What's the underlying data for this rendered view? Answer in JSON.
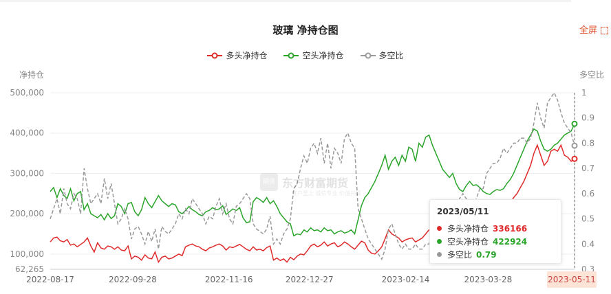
{
  "header": {
    "title": "玻璃 净持仓图",
    "fullscreen_label": "全屏"
  },
  "watermark": {
    "name": "东方财富期货",
    "slogan": "客户至上 诚信专业 价值共赢",
    "logo": "期货"
  },
  "legend": {
    "items": [
      {
        "label": "多头净持仓",
        "color": "#e02a2a"
      },
      {
        "label": "空头净持仓",
        "color": "#2aa52a"
      },
      {
        "label": "多空比",
        "color": "#999999"
      }
    ]
  },
  "axis_names": {
    "left": "净持仓",
    "right": "多空比"
  },
  "tooltip": {
    "date": "2023/05/11",
    "rows": [
      {
        "label": "多头净持仓",
        "value": "336166",
        "color": "#e02a2a"
      },
      {
        "label": "空头净持仓",
        "value": "422924",
        "color": "#2aa52a"
      },
      {
        "label": "多空比",
        "value": "0.79",
        "color": "#999999"
      }
    ]
  },
  "end_label": "2023-05-11",
  "chart_data": {
    "type": "line",
    "title": "玻璃 净持仓图",
    "xlabel": "",
    "ylabel": "净持仓",
    "y2label": "多空比",
    "x_tick_labels": [
      "2022-08-17",
      "2022-09-28",
      "2022-11-16",
      "2022-12-27",
      "2023-02-14",
      "2023-03-28",
      "2023-05-11"
    ],
    "y_tick_labels": [
      "500,000",
      "400,000",
      "300,000",
      "200,000",
      "100,000",
      "62,265"
    ],
    "y2_tick_labels": [
      "1",
      "0.9",
      "0.8",
      "0.7",
      "0.6",
      "0.5",
      "0.4",
      "0.3"
    ],
    "ylim": [
      62265,
      500000
    ],
    "y2lim": [
      0.3,
      1.0
    ],
    "x_range": [
      "2022-08-17",
      "2023-05-11"
    ],
    "legend_position": "top",
    "grid": true,
    "series": [
      {
        "name": "多头净持仓",
        "axis": "left",
        "color": "#e02a2a",
        "dashed": false,
        "values": [
          130000,
          140000,
          142000,
          133000,
          130000,
          136000,
          122000,
          125000,
          118000,
          124000,
          130000,
          140000,
          120000,
          105000,
          128000,
          115000,
          112000,
          120000,
          118000,
          112000,
          118000,
          110000,
          108000,
          120000,
          88000,
          95000,
          92000,
          85000,
          98000,
          90000,
          88000,
          105000,
          80000,
          92000,
          95000,
          88000,
          90000,
          95000,
          100000,
          96000,
          118000,
          122000,
          125000,
          120000,
          118000,
          112000,
          108000,
          115000,
          118000,
          122000,
          125000,
          120000,
          110000,
          118000,
          116000,
          120000,
          124000,
          118000,
          112000,
          108000,
          118000,
          110000,
          112000,
          108000,
          116000,
          120000,
          85000,
          90000,
          84000,
          88000,
          80000,
          92000,
          86000,
          95000,
          100000,
          98000,
          108000,
          120000,
          125000,
          118000,
          122000,
          130000,
          120000,
          125000,
          128000,
          118000,
          122000,
          130000,
          125000,
          118000,
          112000,
          122000,
          132000,
          128000,
          110000,
          102000,
          100000,
          108000,
          118000,
          138000,
          160000,
          150000,
          145000,
          140000,
          130000,
          135000,
          138000,
          140000,
          130000,
          135000,
          140000,
          150000,
          160000,
          165000,
          170000,
          158000,
          165000,
          160000,
          150000,
          145000,
          150000,
          155000,
          160000,
          150000,
          145000,
          148000,
          158000,
          165000,
          160000,
          175000,
          180000,
          185000,
          190000,
          200000,
          210000,
          215000,
          225000,
          240000,
          250000,
          265000,
          280000,
          300000,
          320000,
          350000,
          370000,
          345000,
          320000,
          330000,
          355000,
          360000,
          355000,
          370000,
          345000,
          340000,
          330000,
          336166
        ]
      },
      {
        "name": "空头净持仓",
        "axis": "left",
        "color": "#2aa52a",
        "dashed": false,
        "values": [
          255000,
          265000,
          240000,
          262000,
          245000,
          238000,
          262000,
          232000,
          250000,
          255000,
          210000,
          225000,
          200000,
          195000,
          190000,
          198000,
          185000,
          200000,
          188000,
          195000,
          225000,
          218000,
          200000,
          225000,
          228000,
          205000,
          195000,
          210000,
          240000,
          225000,
          215000,
          230000,
          245000,
          232000,
          225000,
          218000,
          225000,
          222000,
          205000,
          200000,
          208000,
          218000,
          210000,
          205000,
          198000,
          195000,
          205000,
          208000,
          215000,
          210000,
          212000,
          220000,
          198000,
          205000,
          212000,
          208000,
          215000,
          190000,
          178000,
          180000,
          230000,
          240000,
          235000,
          228000,
          240000,
          225000,
          232000,
          218000,
          200000,
          190000,
          180000,
          175000,
          145000,
          150000,
          148000,
          160000,
          155000,
          165000,
          158000,
          160000,
          155000,
          165000,
          158000,
          160000,
          150000,
          155000,
          158000,
          152000,
          155000,
          160000,
          150000,
          185000,
          220000,
          240000,
          250000,
          265000,
          280000,
          300000,
          320000,
          345000,
          310000,
          330000,
          340000,
          320000,
          345000,
          330000,
          365000,
          360000,
          330000,
          375000,
          365000,
          390000,
          395000,
          370000,
          350000,
          330000,
          310000,
          300000,
          290000,
          300000,
          275000,
          260000,
          255000,
          270000,
          280000,
          270000,
          272000,
          265000,
          255000,
          250000,
          248000,
          255000,
          260000,
          258000,
          262000,
          275000,
          285000,
          300000,
          320000,
          340000,
          360000,
          380000,
          395000,
          410000,
          405000,
          380000,
          360000,
          355000,
          360000,
          370000,
          375000,
          385000,
          395000,
          400000,
          405000,
          422924
        ]
      },
      {
        "name": "多空比",
        "axis": "right",
        "color": "#999999",
        "dashed": true,
        "values": [
          0.5,
          0.54,
          0.58,
          0.52,
          0.62,
          0.56,
          0.54,
          0.6,
          0.58,
          0.52,
          0.7,
          0.62,
          0.56,
          0.58,
          0.6,
          0.56,
          0.66,
          0.58,
          0.64,
          0.56,
          0.48,
          0.5,
          0.54,
          0.5,
          0.42,
          0.46,
          0.47,
          0.44,
          0.4,
          0.45,
          0.41,
          0.46,
          0.38,
          0.47,
          0.45,
          0.44,
          0.46,
          0.48,
          0.52,
          0.5,
          0.54,
          0.52,
          0.58,
          0.56,
          0.54,
          0.52,
          0.48,
          0.51,
          0.5,
          0.55,
          0.58,
          0.52,
          0.56,
          0.5,
          0.48,
          0.55,
          0.56,
          0.58,
          0.6,
          0.58,
          0.48,
          0.46,
          0.45,
          0.44,
          0.46,
          0.51,
          0.4,
          0.42,
          0.4,
          0.44,
          0.46,
          0.5,
          0.62,
          0.64,
          0.7,
          0.75,
          0.72,
          0.78,
          0.8,
          0.76,
          0.82,
          0.72,
          0.8,
          0.7,
          0.78,
          0.76,
          0.72,
          0.82,
          0.84,
          0.8,
          0.78,
          0.54,
          0.5,
          0.46,
          0.42,
          0.4,
          0.38,
          0.36,
          0.34,
          0.38,
          0.46,
          0.48,
          0.44,
          0.4,
          0.38,
          0.4,
          0.38,
          0.38,
          0.4,
          0.38,
          0.38,
          0.4,
          0.4,
          0.44,
          0.48,
          0.5,
          0.52,
          0.56,
          0.54,
          0.5,
          0.52,
          0.58,
          0.6,
          0.58,
          0.54,
          0.56,
          0.58,
          0.62,
          0.62,
          0.68,
          0.7,
          0.72,
          0.72,
          0.74,
          0.78,
          0.76,
          0.78,
          0.8,
          0.8,
          0.82,
          0.82,
          0.8,
          0.82,
          0.88,
          0.96,
          0.9,
          0.86,
          0.96,
          0.98,
          1.0,
          0.97,
          0.92,
          0.88,
          0.86,
          0.84,
          0.79
        ]
      }
    ]
  }
}
